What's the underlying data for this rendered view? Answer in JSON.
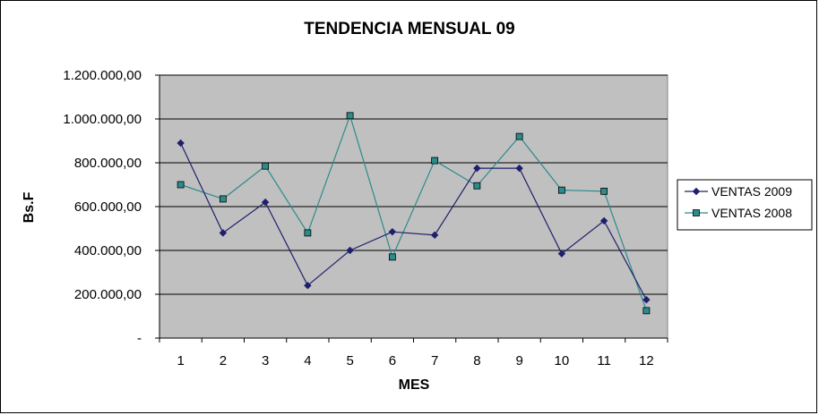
{
  "chart_data": {
    "type": "line",
    "title": "TENDENCIA MENSUAL 09",
    "xlabel": "MES",
    "ylabel": "Bs.F",
    "categories": [
      "1",
      "2",
      "3",
      "4",
      "5",
      "6",
      "7",
      "8",
      "9",
      "10",
      "11",
      "12"
    ],
    "y_tick_labels": [
      "-",
      "200.000,00",
      "400.000,00",
      "600.000,00",
      "800.000,00",
      "1.000.000,00",
      "1.200.000,00"
    ],
    "ylim": [
      0,
      1200000
    ],
    "grid": true,
    "legend_position": "right",
    "plot_background": "#c0c0c0",
    "series": [
      {
        "name": "VENTAS 2009",
        "color": "#1f1f6e",
        "marker": "diamond",
        "values": [
          890000,
          480000,
          620000,
          240000,
          400000,
          485000,
          470000,
          775000,
          775000,
          385000,
          535000,
          175000
        ]
      },
      {
        "name": "VENTAS 2008",
        "color": "#2e8b8b",
        "marker": "square",
        "values": [
          700000,
          635000,
          785000,
          480000,
          1015000,
          370000,
          810000,
          695000,
          920000,
          675000,
          670000,
          125000
        ]
      }
    ]
  }
}
